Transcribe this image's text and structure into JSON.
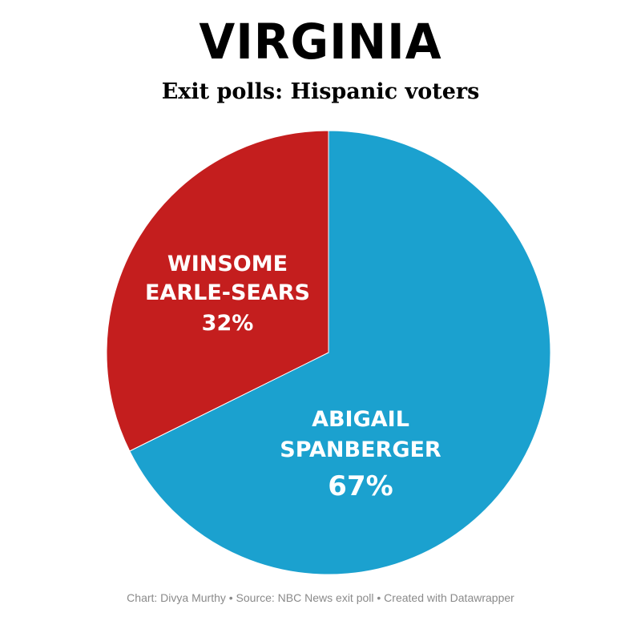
{
  "header": {
    "title": "VIRGINIA",
    "subtitle": "Exit polls: Hispanic voters"
  },
  "chart_data": {
    "type": "pie",
    "slices": [
      {
        "name": "ABIGAIL SPANBERGER",
        "label_lines": [
          "ABIGAIL",
          "SPANBERGER"
        ],
        "value": 67,
        "value_label": "67%",
        "color": "#1ba1cf"
      },
      {
        "name": "WINSOME EARLE-SEARS",
        "label_lines": [
          "WINSOME",
          "EARLE-SEARS"
        ],
        "value": 32,
        "value_label": "32%",
        "color": "#c41e1e"
      }
    ],
    "start": "12 o'clock",
    "direction": "clockwise",
    "legend": "none"
  },
  "footer": {
    "credit": "Chart: Divya Murthy • Source: NBC News exit poll  • Created with Datawrapper"
  }
}
